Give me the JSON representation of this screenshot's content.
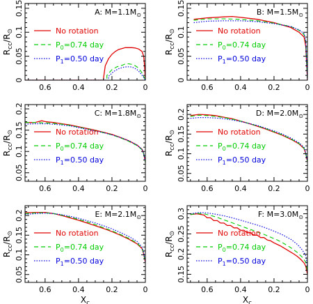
{
  "colors": {
    "frame": "#000000",
    "no_rotation": "#e00000",
    "p0": "#00cc00",
    "p1": "#0000dd"
  },
  "legend_labels": {
    "no_rotation": "No rotation",
    "p0_prefix": "P",
    "p0_sub": "0",
    "p0_suffix": "=0.74 day",
    "p1_prefix": "P",
    "p1_sub": "1",
    "p1_suffix": "=0.50 day"
  },
  "axis_labels": {
    "x_main": "X",
    "x_sub": "c",
    "y_main": "R",
    "y_sub": "cc",
    "y_mid": "/R",
    "y_sun": "⊙"
  },
  "chart_data": [
    {
      "type": "line",
      "panel_label": "A: M=1.1M",
      "xlim": [
        0.72,
        0
      ],
      "ylim": [
        0,
        0.16
      ],
      "xticks": [
        0.6,
        0.4,
        0.2,
        0
      ],
      "xticklabels": [
        "0.6",
        "0.4",
        "0.2",
        "0"
      ],
      "yticks": [
        0,
        0.05,
        0.1,
        0.15
      ],
      "yticklabels": [
        "0",
        "0.05",
        "0.1",
        "0.15"
      ],
      "series": [
        {
          "name": "No rotation",
          "x": [
            0.72,
            0.25,
            0.25,
            0.24,
            0.22,
            0.2,
            0.18,
            0.16,
            0.14,
            0.12,
            0.1,
            0.08,
            0.06,
            0.04,
            0.02,
            0.01,
            0.005,
            0
          ],
          "y": [
            0,
            0,
            0.005,
            0.03,
            0.045,
            0.054,
            0.06,
            0.064,
            0.066,
            0.068,
            0.068,
            0.068,
            0.067,
            0.065,
            0.06,
            0.05,
            0.03,
            0
          ]
        },
        {
          "name": "P0=0.74 day",
          "x": [
            0.72,
            0.23,
            0.23,
            0.2,
            0.17,
            0.14,
            0.12,
            0.1,
            0.08,
            0.06,
            0.04,
            0.02,
            0.01,
            0
          ],
          "y": [
            0,
            0,
            0.01,
            0.022,
            0.028,
            0.031,
            0.034,
            0.034,
            0.033,
            0.03,
            0.025,
            0.015,
            0.008,
            0
          ]
        },
        {
          "name": "P1=0.50 day",
          "x": [
            0.72,
            0.22,
            0.22,
            0.19,
            0.16,
            0.13,
            0.11,
            0.09,
            0.07,
            0.05,
            0.03,
            0.01,
            0
          ],
          "y": [
            0,
            0,
            0.008,
            0.018,
            0.024,
            0.027,
            0.028,
            0.028,
            0.026,
            0.022,
            0.015,
            0.006,
            0
          ]
        }
      ]
    },
    {
      "type": "line",
      "panel_label": "B: M=1.5M",
      "xlim": [
        0.72,
        0
      ],
      "ylim": [
        0,
        0.16
      ],
      "xticks": [
        0.6,
        0.4,
        0.2,
        0
      ],
      "xticklabels": [
        "0.6",
        "0.4",
        "0.2",
        "0"
      ],
      "yticks": [
        0,
        0.05,
        0.1,
        0.15
      ],
      "yticklabels": [
        "0",
        "0.05",
        "0.1",
        "0.15"
      ],
      "series": [
        {
          "name": "No rotation",
          "x": [
            0.68,
            0.6,
            0.5,
            0.45,
            0.4,
            0.3,
            0.2,
            0.1,
            0.05,
            0.02,
            0.01,
            0
          ],
          "y": [
            0.127,
            0.13,
            0.132,
            0.133,
            0.131,
            0.127,
            0.12,
            0.11,
            0.1,
            0.09,
            0.07,
            0
          ]
        },
        {
          "name": "P0=0.74 day",
          "x": [
            0.68,
            0.6,
            0.5,
            0.4,
            0.3,
            0.2,
            0.1,
            0.05,
            0.02,
            0.01,
            0
          ],
          "y": [
            0.125,
            0.128,
            0.128,
            0.127,
            0.124,
            0.119,
            0.112,
            0.104,
            0.095,
            0.08,
            0
          ]
        },
        {
          "name": "P1=0.50 day",
          "x": [
            0.68,
            0.6,
            0.5,
            0.4,
            0.3,
            0.2,
            0.1,
            0.05,
            0.02,
            0.01,
            0
          ],
          "y": [
            0.12,
            0.123,
            0.124,
            0.124,
            0.122,
            0.118,
            0.112,
            0.105,
            0.097,
            0.082,
            0
          ]
        }
      ]
    },
    {
      "type": "line",
      "panel_label": "C: M=1.8M",
      "xlim": [
        0.72,
        0
      ],
      "ylim": [
        0.03,
        0.21
      ],
      "xticks": [
        0.6,
        0.4,
        0.2,
        0
      ],
      "xticklabels": [
        "0.6",
        "0.4",
        "0.2",
        "0"
      ],
      "yticks": [
        0.05,
        0.1,
        0.15,
        0.2
      ],
      "yticklabels": [
        "0.05",
        "0.1",
        "0.15",
        "0.2"
      ],
      "series": [
        {
          "name": "No rotation",
          "x": [
            0.72,
            0.66,
            0.62,
            0.6,
            0.55,
            0.5,
            0.45,
            0.4,
            0.35,
            0.3,
            0.25,
            0.2,
            0.15,
            0.1,
            0.05,
            0.02,
            0.01,
            0
          ],
          "y": [
            0.168,
            0.168,
            0.172,
            0.17,
            0.168,
            0.165,
            0.162,
            0.158,
            0.154,
            0.15,
            0.145,
            0.14,
            0.133,
            0.125,
            0.115,
            0.105,
            0.095,
            0.075
          ]
        },
        {
          "name": "P0=0.74 day",
          "x": [
            0.72,
            0.66,
            0.6,
            0.55,
            0.5,
            0.45,
            0.4,
            0.35,
            0.3,
            0.25,
            0.2,
            0.15,
            0.1,
            0.05,
            0.02,
            0.01,
            0
          ],
          "y": [
            0.168,
            0.168,
            0.167,
            0.166,
            0.164,
            0.161,
            0.157,
            0.153,
            0.149,
            0.144,
            0.139,
            0.132,
            0.124,
            0.114,
            0.104,
            0.094,
            0.074
          ]
        },
        {
          "name": "P1=0.50 day",
          "x": [
            0.72,
            0.66,
            0.6,
            0.55,
            0.5,
            0.45,
            0.4,
            0.35,
            0.3,
            0.25,
            0.2,
            0.15,
            0.1,
            0.05,
            0.02,
            0.01,
            0
          ],
          "y": [
            0.164,
            0.165,
            0.165,
            0.164,
            0.162,
            0.16,
            0.156,
            0.152,
            0.148,
            0.144,
            0.139,
            0.133,
            0.125,
            0.115,
            0.105,
            0.095,
            0.076
          ]
        }
      ]
    },
    {
      "type": "line",
      "panel_label": "D: M=2.0M",
      "xlim": [
        0.72,
        0
      ],
      "ylim": [
        0.03,
        0.225
      ],
      "xticks": [
        0.6,
        0.4,
        0.2,
        0
      ],
      "xticklabels": [
        "0.6",
        "0.4",
        "0.2",
        "0"
      ],
      "yticks": [
        0.05,
        0.1,
        0.15,
        0.2
      ],
      "yticklabels": [
        "0.05",
        "0.1",
        "0.15",
        "0.2"
      ],
      "series": [
        {
          "name": "No rotation",
          "x": [
            0.7,
            0.65,
            0.6,
            0.55,
            0.5,
            0.45,
            0.4,
            0.35,
            0.3,
            0.25,
            0.2,
            0.15,
            0.1,
            0.05,
            0.02,
            0.01,
            0
          ],
          "y": [
            0.197,
            0.2,
            0.199,
            0.197,
            0.193,
            0.189,
            0.183,
            0.177,
            0.17,
            0.163,
            0.155,
            0.147,
            0.137,
            0.125,
            0.113,
            0.1,
            0.08
          ]
        },
        {
          "name": "P0=0.74 day",
          "x": [
            0.7,
            0.65,
            0.6,
            0.55,
            0.5,
            0.45,
            0.4,
            0.35,
            0.3,
            0.25,
            0.2,
            0.15,
            0.1,
            0.05,
            0.02,
            0.01,
            0
          ],
          "y": [
            0.195,
            0.198,
            0.197,
            0.195,
            0.192,
            0.188,
            0.183,
            0.177,
            0.171,
            0.164,
            0.156,
            0.148,
            0.138,
            0.126,
            0.114,
            0.1,
            0.08
          ]
        },
        {
          "name": "P1=0.50 day",
          "x": [
            0.7,
            0.65,
            0.6,
            0.55,
            0.5,
            0.45,
            0.4,
            0.35,
            0.3,
            0.25,
            0.2,
            0.15,
            0.1,
            0.05,
            0.02,
            0.01,
            0
          ],
          "y": [
            0.19,
            0.192,
            0.192,
            0.191,
            0.189,
            0.186,
            0.182,
            0.177,
            0.172,
            0.165,
            0.158,
            0.15,
            0.14,
            0.128,
            0.116,
            0.102,
            0.082
          ]
        }
      ]
    },
    {
      "type": "line",
      "panel_label": "E: M=2.1M",
      "xlim": [
        0.72,
        0
      ],
      "ylim": [
        0.03,
        0.225
      ],
      "xticks": [
        0.6,
        0.4,
        0.2,
        0
      ],
      "xticklabels": [
        "0.6",
        "0.4",
        "0.2",
        "0"
      ],
      "yticks": [
        0.05,
        0.1,
        0.15,
        0.2
      ],
      "yticklabels": [
        "0.05",
        "0.1",
        "0.15",
        "0.2"
      ],
      "series": [
        {
          "name": "No rotation",
          "x": [
            0.72,
            0.65,
            0.6,
            0.55,
            0.5,
            0.45,
            0.4,
            0.35,
            0.3,
            0.25,
            0.2,
            0.15,
            0.1,
            0.05,
            0.02,
            0.01,
            0
          ],
          "y": [
            0.207,
            0.208,
            0.208,
            0.205,
            0.2,
            0.194,
            0.188,
            0.181,
            0.174,
            0.167,
            0.159,
            0.15,
            0.14,
            0.128,
            0.116,
            0.102,
            0.08
          ]
        },
        {
          "name": "P0=0.74 day",
          "x": [
            0.72,
            0.65,
            0.6,
            0.55,
            0.5,
            0.45,
            0.4,
            0.35,
            0.3,
            0.25,
            0.2,
            0.15,
            0.1,
            0.05,
            0.02,
            0.01,
            0
          ],
          "y": [
            0.205,
            0.207,
            0.207,
            0.205,
            0.201,
            0.196,
            0.19,
            0.184,
            0.177,
            0.169,
            0.161,
            0.152,
            0.142,
            0.13,
            0.117,
            0.103,
            0.081
          ]
        },
        {
          "name": "P1=0.50 day",
          "x": [
            0.72,
            0.65,
            0.6,
            0.55,
            0.5,
            0.45,
            0.4,
            0.35,
            0.3,
            0.25,
            0.2,
            0.15,
            0.1,
            0.05,
            0.02,
            0.01,
            0
          ],
          "y": [
            0.203,
            0.205,
            0.206,
            0.205,
            0.202,
            0.198,
            0.193,
            0.187,
            0.181,
            0.174,
            0.166,
            0.157,
            0.147,
            0.134,
            0.12,
            0.105,
            0.082
          ]
        }
      ]
    },
    {
      "type": "line",
      "panel_label": "F: M=3.0M",
      "xlim": [
        0.72,
        0
      ],
      "ylim": [
        0.13,
        0.32
      ],
      "xticks": [
        0.6,
        0.4,
        0.2,
        0
      ],
      "xticklabels": [
        "0.6",
        "0.4",
        "0.2",
        "0"
      ],
      "yticks": [
        0.15,
        0.2,
        0.25,
        0.3
      ],
      "yticklabels": [
        "0.15",
        "0.2",
        "0.25",
        "0.3"
      ],
      "series": [
        {
          "name": "No rotation",
          "x": [
            0.7,
            0.66,
            0.62,
            0.6,
            0.58,
            0.56,
            0.54,
            0.52,
            0.5,
            0.48,
            0.46,
            0.44,
            0.42,
            0.4,
            0.38,
            0.36,
            0.34,
            0.32,
            0.3,
            0.28,
            0.26,
            0.24,
            0.22,
            0.2,
            0.18,
            0.16,
            0.14,
            0.12,
            0.1,
            0.08,
            0.06,
            0.04,
            0.02,
            0.01,
            0
          ],
          "y": [
            0.298,
            0.3,
            0.297,
            0.29,
            0.29,
            0.283,
            0.283,
            0.277,
            0.277,
            0.271,
            0.271,
            0.265,
            0.265,
            0.259,
            0.259,
            0.253,
            0.253,
            0.247,
            0.247,
            0.241,
            0.241,
            0.235,
            0.233,
            0.228,
            0.224,
            0.22,
            0.215,
            0.21,
            0.205,
            0.2,
            0.194,
            0.187,
            0.178,
            0.17,
            0.15
          ]
        },
        {
          "name": "P0=0.74 day",
          "x": [
            0.7,
            0.66,
            0.62,
            0.58,
            0.54,
            0.5,
            0.46,
            0.42,
            0.38,
            0.34,
            0.3,
            0.26,
            0.22,
            0.18,
            0.14,
            0.1,
            0.06,
            0.03,
            0.01,
            0
          ],
          "y": [
            0.298,
            0.301,
            0.3,
            0.296,
            0.291,
            0.285,
            0.279,
            0.273,
            0.267,
            0.261,
            0.255,
            0.249,
            0.242,
            0.235,
            0.226,
            0.216,
            0.204,
            0.192,
            0.18,
            0.158
          ]
        },
        {
          "name": "P1=0.50 day",
          "x": [
            0.7,
            0.65,
            0.6,
            0.55,
            0.5,
            0.45,
            0.4,
            0.35,
            0.3,
            0.25,
            0.2,
            0.15,
            0.1,
            0.06,
            0.03,
            0.01,
            0
          ],
          "y": [
            0.3,
            0.303,
            0.302,
            0.299,
            0.295,
            0.29,
            0.284,
            0.278,
            0.272,
            0.265,
            0.257,
            0.248,
            0.237,
            0.224,
            0.21,
            0.196,
            0.17
          ]
        }
      ]
    }
  ]
}
